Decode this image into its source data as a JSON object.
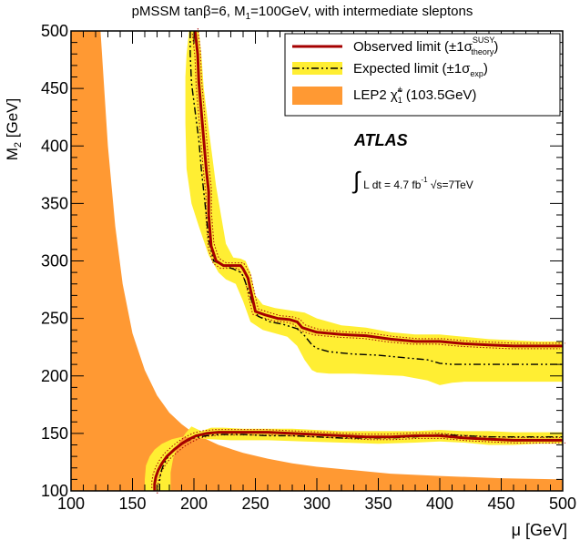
{
  "chart_data": {
    "type": "area",
    "title": "pMSSM tanβ=6, M",
    "title_sub": "1",
    "title_tail": "=100GeV, with intermediate sleptons",
    "xlabel": "μ [GeV]",
    "ylabel_main": "M",
    "ylabel_sub": "2",
    "ylabel_tail": " [GeV]",
    "xlim": [
      100,
      500
    ],
    "ylim": [
      100,
      500
    ],
    "xticks": [
      "100",
      "150",
      "200",
      "250",
      "300",
      "350",
      "400",
      "450",
      "500"
    ],
    "yticks": [
      "100",
      "150",
      "200",
      "250",
      "300",
      "350",
      "400",
      "450",
      "500"
    ],
    "legend_position": "top-right",
    "legend": {
      "observed": "Observed limit (±1σ",
      "observed_sup": "SUSY",
      "observed_sub": "theory",
      "observed_close": ")",
      "expected": "Expected limit (±1σ",
      "expected_sub": "exp",
      "expected_close": ")",
      "lep": "LEP2 χ̃",
      "lep_sup": "±",
      "lep_sub": "1",
      "lep_tail": " (103.5GeV)"
    },
    "annotations": {
      "experiment": "ATLAS",
      "lumi_symbol": "∫",
      "lumi": "L dt = 4.7 fb",
      "lumi_sup": "-1",
      "energy": " √s=7TeV"
    },
    "colors": {
      "observed": "#a50000",
      "expected": "#000000",
      "exp_band": "#ffee33",
      "lep": "#ff9933"
    },
    "series": [
      {
        "name": "Observed limit",
        "key": "obs_upper",
        "x": [
          201,
          203,
          204,
          206,
          208,
          210,
          212,
          212,
          214,
          218,
          224,
          232,
          238,
          240,
          244,
          246,
          250,
          258,
          268,
          278,
          284,
          288,
          294,
          300,
          320,
          340,
          360,
          380,
          400,
          420,
          440,
          460,
          480,
          500
        ],
        "y": [
          500,
          480,
          455,
          430,
          405,
          380,
          360,
          340,
          313,
          300,
          296,
          296,
          296,
          293,
          285,
          275,
          256,
          253,
          250,
          249,
          247,
          242,
          240,
          238,
          236,
          235,
          232,
          230,
          230,
          228,
          227,
          226,
          226,
          226
        ]
      },
      {
        "name": "Expected limit",
        "key": "exp_upper",
        "x": [
          197,
          197,
          198,
          201,
          204,
          206,
          208,
          210,
          212,
          216,
          224,
          232,
          238,
          240,
          244,
          248,
          252,
          262,
          272,
          284,
          290,
          296,
          300,
          310,
          330,
          350,
          370,
          390,
          400,
          410,
          430,
          450,
          470,
          500
        ],
        "y": [
          500,
          480,
          455,
          430,
          405,
          380,
          360,
          340,
          318,
          300,
          296,
          293,
          290,
          287,
          275,
          262,
          252,
          247,
          245,
          241,
          235,
          227,
          224,
          221,
          219,
          218,
          216,
          214,
          211,
          210,
          210,
          210,
          210,
          210
        ]
      },
      {
        "name": "Expected band upper edge",
        "key": "exp_band_upper",
        "x": [
          204,
          206,
          208,
          212,
          215,
          218,
          222,
          226,
          232,
          238,
          242,
          246,
          250,
          256,
          266,
          278,
          290,
          300,
          320,
          340,
          360,
          380,
          400,
          420,
          440,
          460,
          480,
          500
        ],
        "y": [
          500,
          480,
          450,
          415,
          390,
          365,
          340,
          315,
          303,
          302,
          300,
          290,
          270,
          262,
          259,
          257,
          255,
          250,
          244,
          242,
          238,
          236,
          236,
          234,
          232,
          231,
          230,
          230
        ]
      },
      {
        "name": "Expected band lower edge",
        "key": "exp_band_lower",
        "x": [
          196,
          194,
          193,
          193,
          194,
          198,
          204,
          212,
          220,
          226,
          230,
          234,
          236,
          240,
          246,
          256,
          266,
          276,
          284,
          290,
          296,
          300,
          310,
          330,
          350,
          370,
          390,
          400,
          410,
          420,
          440,
          460,
          480,
          500
        ],
        "y": [
          500,
          480,
          460,
          420,
          380,
          350,
          330,
          305,
          290,
          284,
          282,
          280,
          275,
          265,
          247,
          240,
          237,
          234,
          226,
          214,
          205,
          203,
          202,
          202,
          201,
          200,
          196,
          192,
          194,
          195,
          195,
          195,
          195,
          195
        ]
      },
      {
        "name": "Observed lower",
        "key": "obs_lower",
        "x": [
          168,
          168,
          169,
          171,
          174,
          178,
          184,
          190,
          196,
          202,
          210,
          220,
          240,
          260,
          280,
          300,
          320,
          340,
          360,
          380,
          400,
          420,
          440,
          460,
          480,
          500
        ],
        "y": [
          100,
          106,
          112,
          118,
          124,
          130,
          136,
          141,
          145,
          148,
          150,
          151,
          151,
          151,
          150,
          149,
          148,
          147,
          147,
          148,
          148,
          146,
          145,
          144,
          144,
          144
        ]
      },
      {
        "name": "Expected lower",
        "key": "exp_lower",
        "x": [
          172,
          172,
          173,
          175,
          178,
          182,
          188,
          194,
          200,
          210,
          220,
          240,
          260,
          280,
          300,
          320,
          340,
          360,
          380,
          400,
          420,
          440,
          460,
          480,
          500
        ],
        "y": [
          100,
          108,
          116,
          122,
          128,
          134,
          139,
          143,
          146,
          148,
          149,
          149,
          148,
          148,
          147,
          146,
          146,
          146,
          147,
          149,
          148,
          147,
          147,
          147,
          147
        ]
      },
      {
        "name": "Expected lower band upper edge",
        "key": "exp_lower_band_upper",
        "x": [
          181,
          181,
          183,
          187,
          193,
          198,
          206,
          214,
          224,
          240,
          260,
          280,
          300,
          320,
          340,
          360,
          380,
          400,
          420,
          440,
          460,
          480,
          500
        ],
        "y": [
          100,
          116,
          128,
          140,
          150,
          156,
          152,
          155,
          155,
          154,
          154,
          154,
          153,
          152,
          152,
          152,
          152,
          153,
          152,
          152,
          151,
          151,
          151
        ]
      },
      {
        "name": "Expected lower band lower edge",
        "key": "exp_lower_band_lower",
        "x": [
          160,
          160,
          161,
          164,
          168,
          174,
          182,
          190,
          200,
          212,
          230,
          260,
          290,
          320,
          350,
          380,
          400,
          420,
          440,
          460,
          480,
          500
        ],
        "y": [
          100,
          110,
          122,
          130,
          136,
          141,
          145,
          147,
          146,
          145,
          144,
          144,
          143,
          142,
          141,
          142,
          143,
          142,
          140,
          140,
          141,
          141
        ]
      },
      {
        "name": "LEP2 χ̃±1 (103.5GeV)",
        "key": "lep",
        "x": [
          124,
          130,
          136,
          142,
          150,
          160,
          170,
          180,
          190,
          200,
          220,
          240,
          260,
          280,
          300,
          330,
          360,
          400,
          450,
          500
        ],
        "y": [
          500,
          400,
          330,
          280,
          237,
          205,
          183,
          168,
          158,
          150,
          140,
          133,
          128,
          124,
          121,
          118,
          115,
          113,
          111,
          110
        ]
      }
    ]
  }
}
